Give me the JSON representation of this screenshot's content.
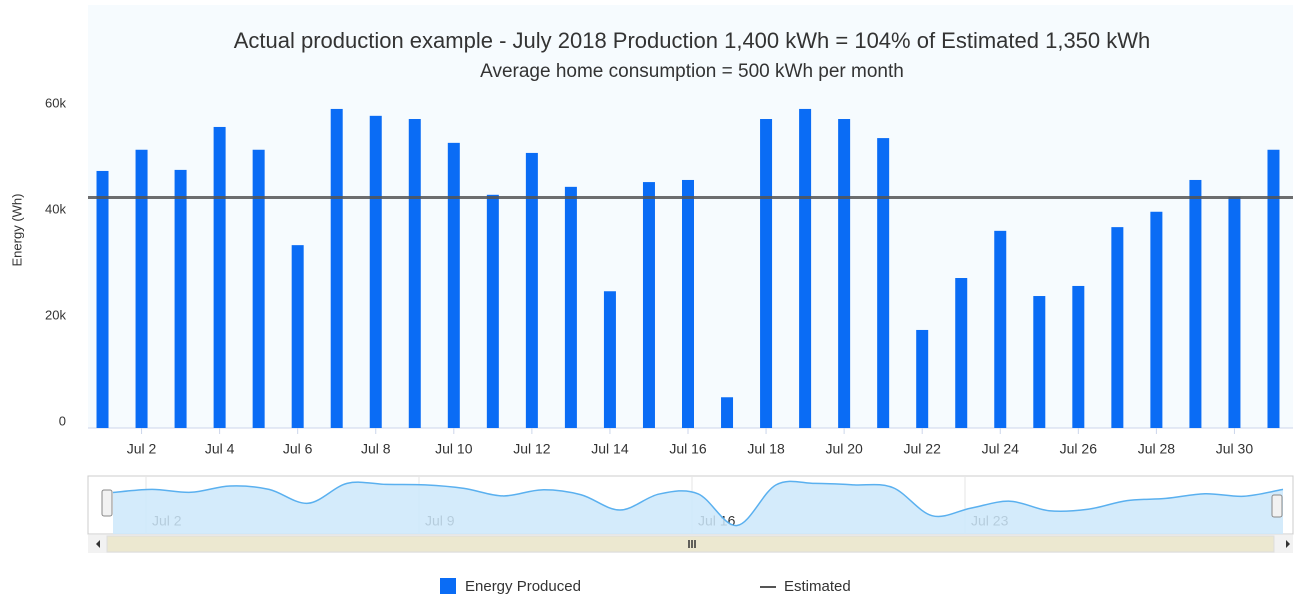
{
  "chart_data": {
    "type": "bar",
    "title": "Actual production example - July 2018 Production 1,400 kWh = 104% of Estimated 1,350 kWh",
    "subtitle": "Average home consumption = 500 kWh per month",
    "y_label": "Energy (Wh)",
    "categories": [
      null,
      "Jul 2",
      null,
      "Jul 4",
      null,
      "Jul 6",
      null,
      "Jul 8",
      null,
      "Jul 10",
      null,
      "Jul 12",
      null,
      "Jul 14",
      null,
      "Jul 16",
      null,
      "Jul 18",
      null,
      "Jul 20",
      null,
      "Jul 22",
      null,
      "Jul 24",
      null,
      "Jul 26",
      null,
      "Jul 28",
      null,
      "Jul 30",
      null
    ],
    "series": [
      {
        "name": "Energy Produced",
        "color": "#0a6cf5",
        "values": [
          48500,
          52500,
          48700,
          56800,
          52500,
          34500,
          60200,
          58900,
          58300,
          53800,
          44000,
          51900,
          45500,
          25800,
          46400,
          46800,
          5800,
          58300,
          60200,
          58300,
          54700,
          18500,
          28300,
          37200,
          24900,
          26800,
          37900,
          40800,
          46800,
          43600,
          52500
        ]
      },
      {
        "name": "Estimated",
        "color": "#555555",
        "type": "line",
        "value": 43500
      }
    ],
    "ylim": [
      0,
      80000
    ],
    "yticks": [
      0,
      {
        "value": 20000,
        "label": "20k"
      },
      {
        "value": 40000,
        "label": "40k"
      },
      {
        "value": 60000,
        "label": "60k"
      }
    ],
    "grid": false,
    "navigator": {
      "labels": [
        "Jul 2",
        "Jul 9",
        "Jul 16",
        "Jul 23"
      ]
    }
  }
}
